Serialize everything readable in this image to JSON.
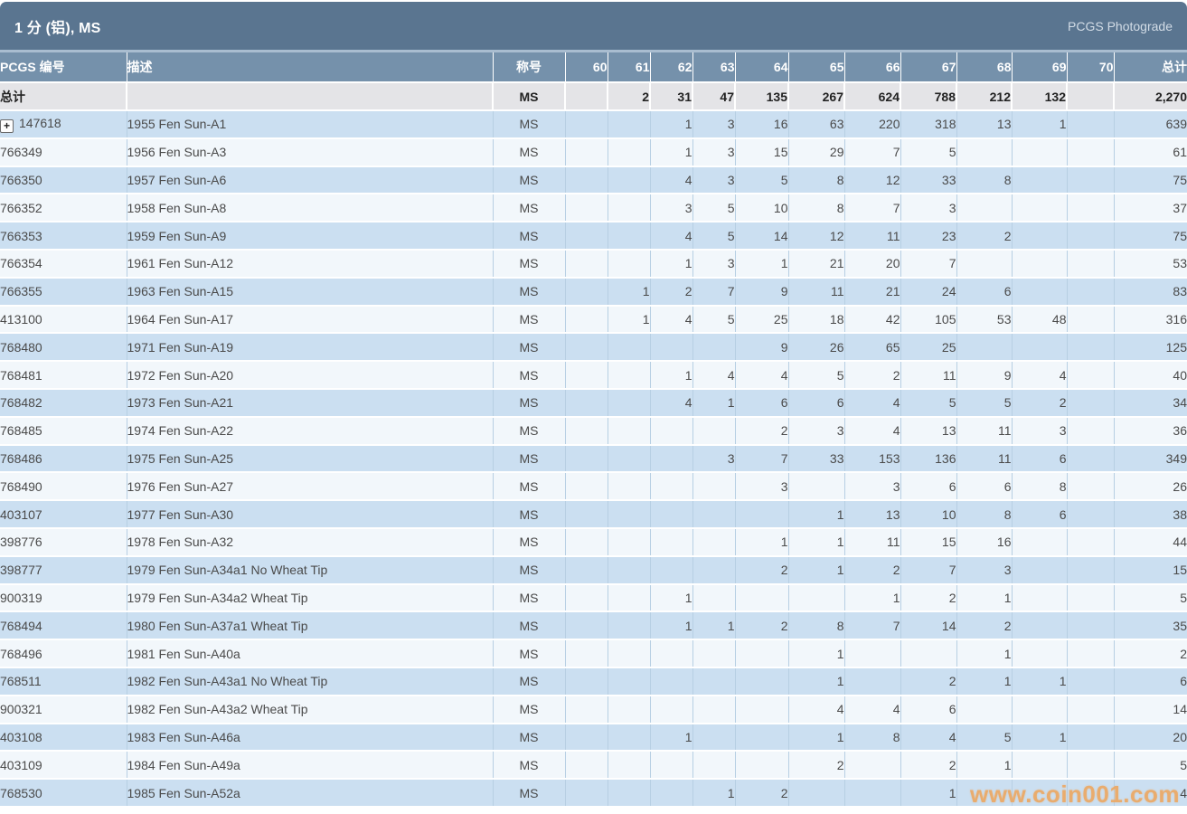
{
  "header": {
    "title": "1 分 (铝), MS",
    "photograde_label": "PCGS Photograde"
  },
  "icons": {
    "expand": "+"
  },
  "watermark": {
    "text": "www.coin001.com",
    "color": "#eea55c"
  },
  "colors": {
    "titlebar_bg": "#5a7590",
    "header_bg": "#7591ab",
    "totals_bg": "#e4e4e7",
    "row_blue": "#cbdff1",
    "row_white": "#f2f7fb",
    "pcgs_link": "#b8805f",
    "watermark": "#eea55c"
  },
  "table": {
    "columns": {
      "pcgs": "PCGS 编号",
      "description": "描述",
      "designation": "称号",
      "grades": [
        "60",
        "61",
        "62",
        "63",
        "64",
        "65",
        "66",
        "67",
        "68",
        "69",
        "70"
      ],
      "total": "总计"
    },
    "totals_row": {
      "label": "总计",
      "designation": "MS",
      "grades": [
        "",
        "2",
        "31",
        "47",
        "135",
        "267",
        "624",
        "788",
        "212",
        "132",
        ""
      ],
      "total": "2,270"
    },
    "rows": [
      {
        "pcgs": "147618",
        "expandable": true,
        "description": "1955 Fen Sun-A1",
        "designation": "MS",
        "grades": [
          "",
          "",
          "1",
          "3",
          "16",
          "63",
          "220",
          "318",
          "13",
          "1",
          ""
        ],
        "total": "639"
      },
      {
        "pcgs": "766349",
        "expandable": false,
        "description": "1956 Fen Sun-A3",
        "designation": "MS",
        "grades": [
          "",
          "",
          "1",
          "3",
          "15",
          "29",
          "7",
          "5",
          "",
          "",
          ""
        ],
        "total": "61"
      },
      {
        "pcgs": "766350",
        "expandable": false,
        "description": "1957 Fen Sun-A6",
        "designation": "MS",
        "grades": [
          "",
          "",
          "4",
          "3",
          "5",
          "8",
          "12",
          "33",
          "8",
          "",
          ""
        ],
        "total": "75"
      },
      {
        "pcgs": "766352",
        "expandable": false,
        "description": "1958 Fen Sun-A8",
        "designation": "MS",
        "grades": [
          "",
          "",
          "3",
          "5",
          "10",
          "8",
          "7",
          "3",
          "",
          "",
          ""
        ],
        "total": "37"
      },
      {
        "pcgs": "766353",
        "expandable": false,
        "description": "1959 Fen Sun-A9",
        "designation": "MS",
        "grades": [
          "",
          "",
          "4",
          "5",
          "14",
          "12",
          "11",
          "23",
          "2",
          "",
          ""
        ],
        "total": "75"
      },
      {
        "pcgs": "766354",
        "expandable": false,
        "description": "1961 Fen Sun-A12",
        "designation": "MS",
        "grades": [
          "",
          "",
          "1",
          "3",
          "1",
          "21",
          "20",
          "7",
          "",
          "",
          ""
        ],
        "total": "53"
      },
      {
        "pcgs": "766355",
        "expandable": false,
        "description": "1963 Fen Sun-A15",
        "designation": "MS",
        "grades": [
          "",
          "1",
          "2",
          "7",
          "9",
          "11",
          "21",
          "24",
          "6",
          "",
          ""
        ],
        "total": "83"
      },
      {
        "pcgs": "413100",
        "expandable": false,
        "description": "1964 Fen Sun-A17",
        "designation": "MS",
        "grades": [
          "",
          "1",
          "4",
          "5",
          "25",
          "18",
          "42",
          "105",
          "53",
          "48",
          ""
        ],
        "total": "316"
      },
      {
        "pcgs": "768480",
        "expandable": false,
        "description": "1971 Fen Sun-A19",
        "designation": "MS",
        "grades": [
          "",
          "",
          "",
          "",
          "9",
          "26",
          "65",
          "25",
          "",
          "",
          ""
        ],
        "total": "125"
      },
      {
        "pcgs": "768481",
        "expandable": false,
        "description": "1972 Fen Sun-A20",
        "designation": "MS",
        "grades": [
          "",
          "",
          "1",
          "4",
          "4",
          "5",
          "2",
          "11",
          "9",
          "4",
          ""
        ],
        "total": "40"
      },
      {
        "pcgs": "768482",
        "expandable": false,
        "description": "1973 Fen Sun-A21",
        "designation": "MS",
        "grades": [
          "",
          "",
          "4",
          "1",
          "6",
          "6",
          "4",
          "5",
          "5",
          "2",
          ""
        ],
        "total": "34"
      },
      {
        "pcgs": "768485",
        "expandable": false,
        "description": "1974 Fen Sun-A22",
        "designation": "MS",
        "grades": [
          "",
          "",
          "",
          "",
          "2",
          "3",
          "4",
          "13",
          "11",
          "3",
          ""
        ],
        "total": "36"
      },
      {
        "pcgs": "768486",
        "expandable": false,
        "description": "1975 Fen Sun-A25",
        "designation": "MS",
        "grades": [
          "",
          "",
          "",
          "3",
          "7",
          "33",
          "153",
          "136",
          "11",
          "6",
          ""
        ],
        "total": "349"
      },
      {
        "pcgs": "768490",
        "expandable": false,
        "description": "1976 Fen Sun-A27",
        "designation": "MS",
        "grades": [
          "",
          "",
          "",
          "",
          "3",
          "",
          "3",
          "6",
          "6",
          "8",
          ""
        ],
        "total": "26"
      },
      {
        "pcgs": "403107",
        "expandable": false,
        "description": "1977 Fen Sun-A30",
        "designation": "MS",
        "grades": [
          "",
          "",
          "",
          "",
          "",
          "1",
          "13",
          "10",
          "8",
          "6",
          ""
        ],
        "total": "38"
      },
      {
        "pcgs": "398776",
        "expandable": false,
        "description": "1978 Fen Sun-A32",
        "designation": "MS",
        "grades": [
          "",
          "",
          "",
          "",
          "1",
          "1",
          "11",
          "15",
          "16",
          "",
          ""
        ],
        "total": "44"
      },
      {
        "pcgs": "398777",
        "expandable": false,
        "description": "1979 Fen Sun-A34a1 No Wheat Tip",
        "designation": "MS",
        "grades": [
          "",
          "",
          "",
          "",
          "2",
          "1",
          "2",
          "7",
          "3",
          "",
          ""
        ],
        "total": "15"
      },
      {
        "pcgs": "900319",
        "expandable": false,
        "description": "1979 Fen Sun-A34a2 Wheat Tip",
        "designation": "MS",
        "grades": [
          "",
          "",
          "1",
          "",
          "",
          "",
          "1",
          "2",
          "1",
          "",
          ""
        ],
        "total": "5"
      },
      {
        "pcgs": "768494",
        "expandable": false,
        "description": "1980 Fen Sun-A37a1 Wheat Tip",
        "designation": "MS",
        "grades": [
          "",
          "",
          "1",
          "1",
          "2",
          "8",
          "7",
          "14",
          "2",
          "",
          ""
        ],
        "total": "35"
      },
      {
        "pcgs": "768496",
        "expandable": false,
        "description": "1981 Fen Sun-A40a",
        "designation": "MS",
        "grades": [
          "",
          "",
          "",
          "",
          "",
          "1",
          "",
          "",
          "1",
          "",
          ""
        ],
        "total": "2"
      },
      {
        "pcgs": "768511",
        "expandable": false,
        "description": "1982 Fen Sun-A43a1 No Wheat Tip",
        "designation": "MS",
        "grades": [
          "",
          "",
          "",
          "",
          "",
          "1",
          "",
          "2",
          "1",
          "1",
          ""
        ],
        "total": "6"
      },
      {
        "pcgs": "900321",
        "expandable": false,
        "description": "1982 Fen Sun-A43a2 Wheat Tip",
        "designation": "MS",
        "grades": [
          "",
          "",
          "",
          "",
          "",
          "4",
          "4",
          "6",
          "",
          "",
          ""
        ],
        "total": "14"
      },
      {
        "pcgs": "403108",
        "expandable": false,
        "description": "1983 Fen Sun-A46a",
        "designation": "MS",
        "grades": [
          "",
          "",
          "1",
          "",
          "",
          "1",
          "8",
          "4",
          "5",
          "1",
          ""
        ],
        "total": "20"
      },
      {
        "pcgs": "403109",
        "expandable": false,
        "description": "1984 Fen Sun-A49a",
        "designation": "MS",
        "grades": [
          "",
          "",
          "",
          "",
          "",
          "2",
          "",
          "2",
          "1",
          "",
          ""
        ],
        "total": "5"
      },
      {
        "pcgs": "768530",
        "expandable": false,
        "description": "1985 Fen Sun-A52a",
        "designation": "MS",
        "grades": [
          "",
          "",
          "",
          "1",
          "2",
          "",
          "",
          "1",
          "",
          "",
          ""
        ],
        "total": "4"
      }
    ]
  }
}
